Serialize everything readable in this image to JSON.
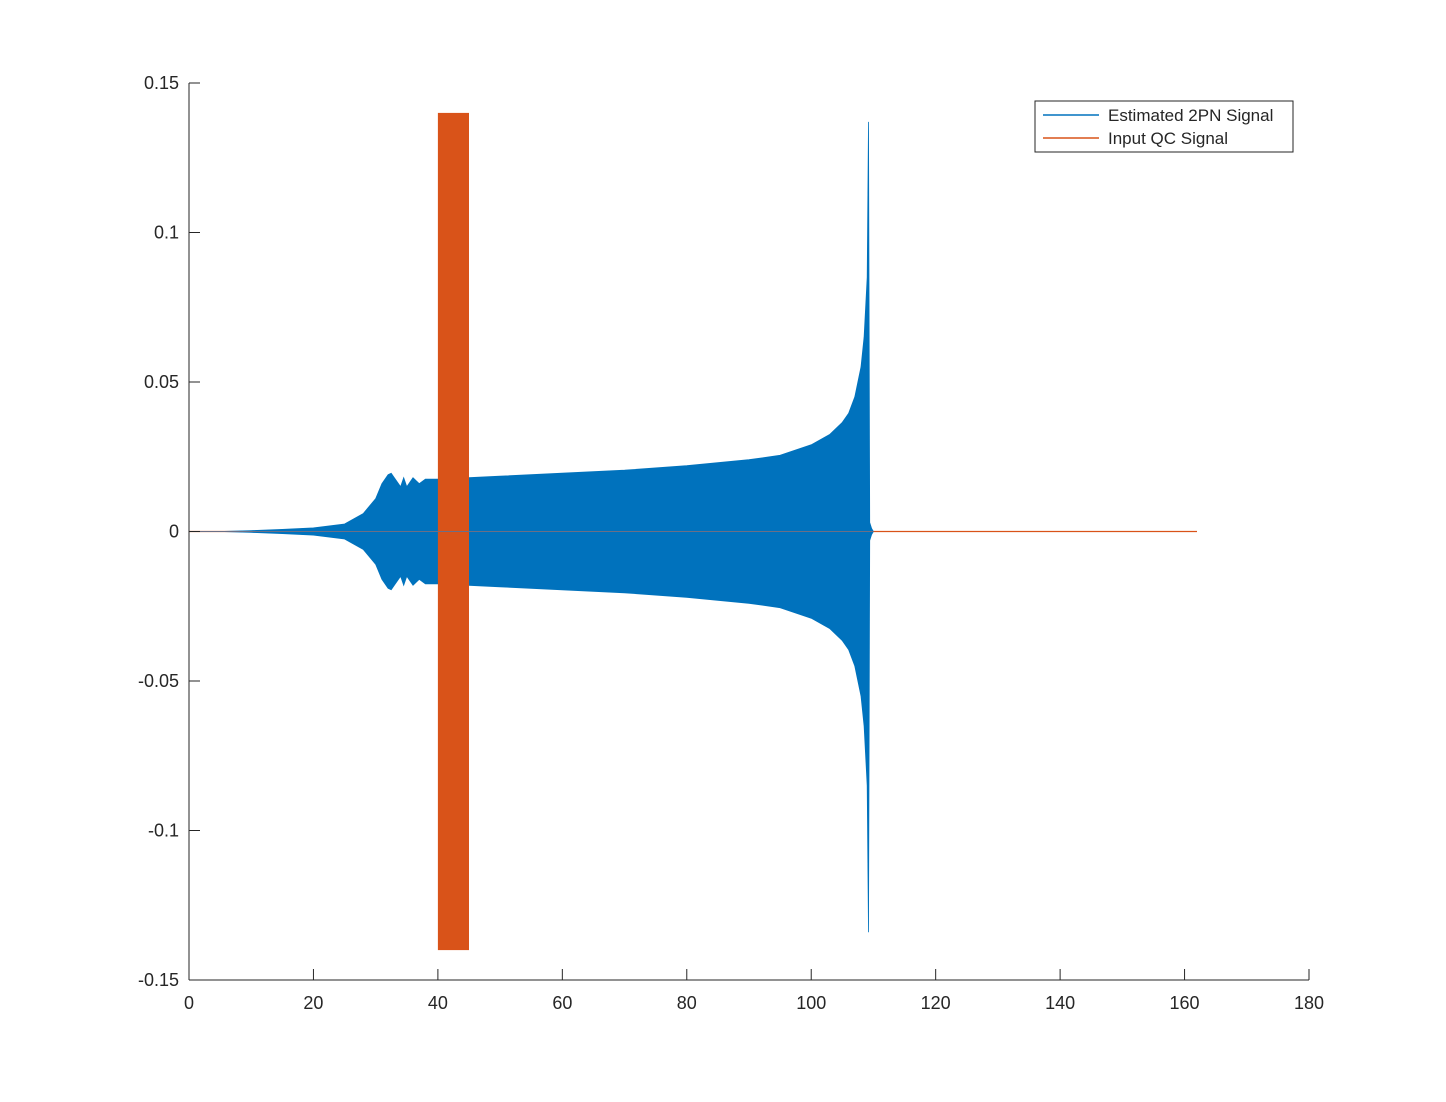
{
  "chart_data": {
    "type": "line",
    "title": "",
    "xlabel": "",
    "ylabel": "",
    "xlim": [
      0,
      180
    ],
    "ylim": [
      -0.15,
      0.15
    ],
    "grid": false,
    "legend_position": "top-right",
    "x_ticks": [
      0,
      20,
      40,
      60,
      80,
      100,
      120,
      140,
      160,
      180
    ],
    "y_ticks": [
      -0.15,
      -0.1,
      -0.05,
      0,
      0.05,
      0.1,
      0.15
    ],
    "x_tick_labels": [
      "0",
      "20",
      "40",
      "60",
      "80",
      "100",
      "120",
      "140",
      "160",
      "180"
    ],
    "y_tick_labels": [
      "-0.15",
      "-0.1",
      "-0.05",
      "0",
      "0.05",
      "0.1",
      "0.15"
    ],
    "series": [
      {
        "name": "Estimated 2PN Signal",
        "color": "#0072BD",
        "envelope_x": [
          0,
          5,
          10,
          15,
          20,
          25,
          28,
          30,
          31,
          32,
          32.5,
          33,
          34,
          34.5,
          35,
          36,
          37,
          38,
          40,
          50,
          60,
          70,
          80,
          90,
          95,
          100,
          103,
          105,
          106,
          107,
          108,
          108.5,
          109,
          109.2,
          109.4,
          109.7,
          110
        ],
        "envelope_upper": [
          0,
          0,
          0.0003,
          0.0007,
          0.0012,
          0.0025,
          0.006,
          0.011,
          0.016,
          0.019,
          0.0195,
          0.018,
          0.015,
          0.018,
          0.015,
          0.018,
          0.016,
          0.0175,
          0.0175,
          0.0185,
          0.0195,
          0.0205,
          0.022,
          0.024,
          0.0255,
          0.029,
          0.0325,
          0.0365,
          0.0395,
          0.045,
          0.055,
          0.065,
          0.085,
          0.137,
          0.003,
          0.001,
          0
        ],
        "envelope_lower": [
          0,
          0,
          -0.0003,
          -0.0007,
          -0.0012,
          -0.0025,
          -0.006,
          -0.011,
          -0.016,
          -0.019,
          -0.0195,
          -0.018,
          -0.015,
          -0.018,
          -0.015,
          -0.018,
          -0.016,
          -0.0175,
          -0.0175,
          -0.0185,
          -0.0195,
          -0.0205,
          -0.022,
          -0.024,
          -0.0255,
          -0.029,
          -0.0325,
          -0.0365,
          -0.0395,
          -0.045,
          -0.055,
          -0.065,
          -0.085,
          -0.134,
          -0.003,
          -0.001,
          0
        ]
      },
      {
        "name": "Input QC Signal",
        "color": "#D95319",
        "burst_x_range": [
          40,
          45
        ],
        "burst_amplitude": 0.14,
        "baseline_x_range": [
          0,
          162
        ],
        "baseline_value": 0
      }
    ]
  }
}
